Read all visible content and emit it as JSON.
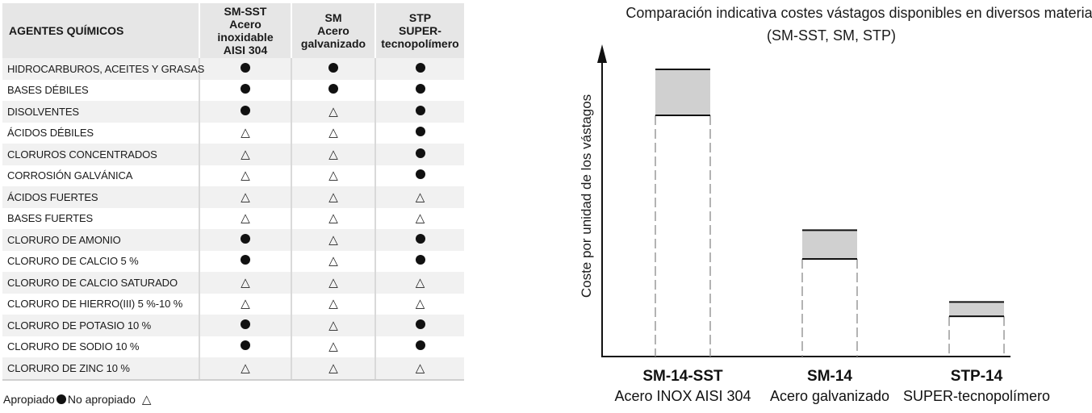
{
  "table": {
    "header": {
      "agent": "AGENTES QUÍMICOS",
      "cols": [
        {
          "l1": "SM-SST",
          "l2": "Acero inoxidable",
          "l3": "AISI 304"
        },
        {
          "l1": "SM",
          "l2": "Acero",
          "l3": "galvanizado"
        },
        {
          "l1": "STP",
          "l2": "SUPER-",
          "l3": "tecnopolímero"
        }
      ]
    },
    "rows": [
      {
        "agent": "HIDROCARBUROS, ACEITES Y GRASAS",
        "v": [
          "dot",
          "dot",
          "dot"
        ]
      },
      {
        "agent": "BASES DÉBILES",
        "v": [
          "dot",
          "dot",
          "dot"
        ]
      },
      {
        "agent": "DISOLVENTES",
        "v": [
          "dot",
          "tri",
          "dot"
        ]
      },
      {
        "agent": "ÁCIDOS DÉBILES",
        "v": [
          "tri",
          "tri",
          "dot"
        ]
      },
      {
        "agent": "CLORUROS CONCENTRADOS",
        "v": [
          "tri",
          "tri",
          "dot"
        ]
      },
      {
        "agent": "CORROSIÓN GALVÁNICA",
        "v": [
          "tri",
          "tri",
          "dot"
        ]
      },
      {
        "agent": "ÁCIDOS FUERTES",
        "v": [
          "tri",
          "tri",
          "tri"
        ]
      },
      {
        "agent": "BASES FUERTES",
        "v": [
          "tri",
          "tri",
          "tri"
        ]
      },
      {
        "agent": "CLORURO DE AMONIO",
        "v": [
          "dot",
          "tri",
          "dot"
        ]
      },
      {
        "agent": "CLORURO DE CALCIO 5 %",
        "v": [
          "dot",
          "tri",
          "dot"
        ]
      },
      {
        "agent": "CLORURO DE CALCIO SATURADO",
        "v": [
          "tri",
          "tri",
          "tri"
        ]
      },
      {
        "agent": "CLORURO DE HIERRO(III) 5 %-10 %",
        "v": [
          "tri",
          "tri",
          "tri"
        ]
      },
      {
        "agent": "CLORURO DE POTASIO 10 %",
        "v": [
          "dot",
          "tri",
          "dot"
        ]
      },
      {
        "agent": "CLORURO DE SODIO 10 %",
        "v": [
          "dot",
          "tri",
          "dot"
        ]
      },
      {
        "agent": "CLORURO DE ZINC 10 %",
        "v": [
          "tri",
          "tri",
          "tri"
        ]
      }
    ]
  },
  "legend": {
    "suitable": "Apropiado",
    "not_suitable": "No apropiado"
  },
  "chart_data": {
    "type": "bar",
    "title": "Comparación indicativa costes vástagos disponibles en diversos materiales",
    "subtitle": "(SM-SST, SM, STP)",
    "ylabel": "Coste por unidad de los vástagos",
    "xlabel": "",
    "ylim": [
      0,
      100
    ],
    "series": [
      {
        "name": "low",
        "values": [
          84,
          34,
          14
        ]
      },
      {
        "name": "high",
        "values": [
          100,
          44,
          19
        ]
      }
    ],
    "categories": [
      {
        "code": "SM-14-SST",
        "desc": "Acero INOX AISI 304"
      },
      {
        "code": "SM-14",
        "desc": "Acero galvanizado"
      },
      {
        "code": "STP-14",
        "desc": "SUPER-tecnopolímero"
      }
    ]
  }
}
